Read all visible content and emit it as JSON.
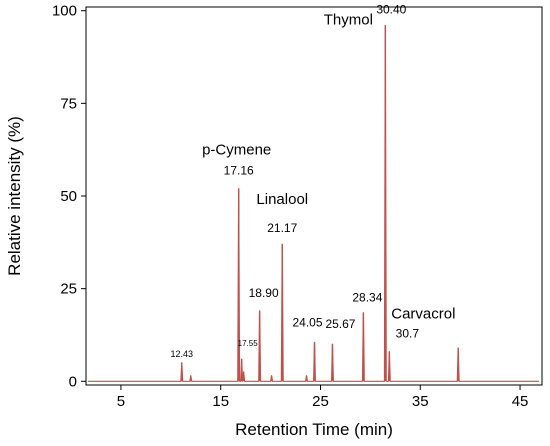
{
  "chart_data": {
    "type": "line",
    "xlabel": "Retention Time (min)",
    "ylabel": "Relative intensity (%)",
    "xlim": [
      1.5,
      47.2
    ],
    "ylim": [
      -1,
      101
    ],
    "xticks": [
      5,
      15,
      25,
      35,
      45
    ],
    "yticks": [
      0,
      25,
      50,
      75,
      100
    ],
    "x_tick_labels": [
      "5",
      "15",
      "25",
      "35",
      "45"
    ],
    "y_tick_labels": [
      "0",
      "25",
      "50",
      "75",
      "100"
    ],
    "line_color": "#c0504d",
    "grid": false,
    "series": [
      {
        "values": [
          {
            "x": 11.1,
            "y": 5
          },
          {
            "x": 12.0,
            "y": 1.5
          },
          {
            "x": 16.8,
            "y": 52
          },
          {
            "x": 17.1,
            "y": 6
          },
          {
            "x": 17.3,
            "y": 2.5
          },
          {
            "x": 18.9,
            "y": 19
          },
          {
            "x": 20.1,
            "y": 1.5
          },
          {
            "x": 21.17,
            "y": 37
          },
          {
            "x": 23.6,
            "y": 1.5
          },
          {
            "x": 24.4,
            "y": 10.5
          },
          {
            "x": 26.2,
            "y": 10
          },
          {
            "x": 29.3,
            "y": 18.5
          },
          {
            "x": 31.5,
            "y": 96
          },
          {
            "x": 31.9,
            "y": 8
          },
          {
            "x": 38.8,
            "y": 9
          }
        ]
      }
    ],
    "peak_labels": [
      {
        "text": "12.43",
        "x": 11.1,
        "y": 5,
        "size": "small"
      },
      {
        "text": "17.16",
        "x": 16.8,
        "y": 52,
        "size": "normal"
      },
      {
        "text": "17.55",
        "x": 17.1,
        "y": 6,
        "size": "tiny"
      },
      {
        "text": "18.90",
        "x": 18.9,
        "y": 19,
        "size": "normal"
      },
      {
        "text": "21.17",
        "x": 21.17,
        "y": 37,
        "size": "normal"
      },
      {
        "text": "24.05",
        "x": 24.4,
        "y": 10.5,
        "size": "normal"
      },
      {
        "text": "25.67",
        "x": 26.2,
        "y": 10,
        "size": "normal"
      },
      {
        "text": "28.34",
        "x": 29.3,
        "y": 18.5,
        "size": "normal"
      },
      {
        "text": "30.40",
        "x": 31.5,
        "y": 96,
        "size": "normal"
      },
      {
        "text": "30.7",
        "x": 31.9,
        "y": 8,
        "size": "normal"
      }
    ],
    "annotations": [
      {
        "text": "p-Cymene",
        "x": 16.8,
        "y": 52
      },
      {
        "text": "Linalool",
        "x": 21.17,
        "y": 37
      },
      {
        "text": "Thymol",
        "x": 31.5,
        "y": 96
      },
      {
        "text": "Carvacrol",
        "x": 31.9,
        "y": 8
      }
    ]
  }
}
